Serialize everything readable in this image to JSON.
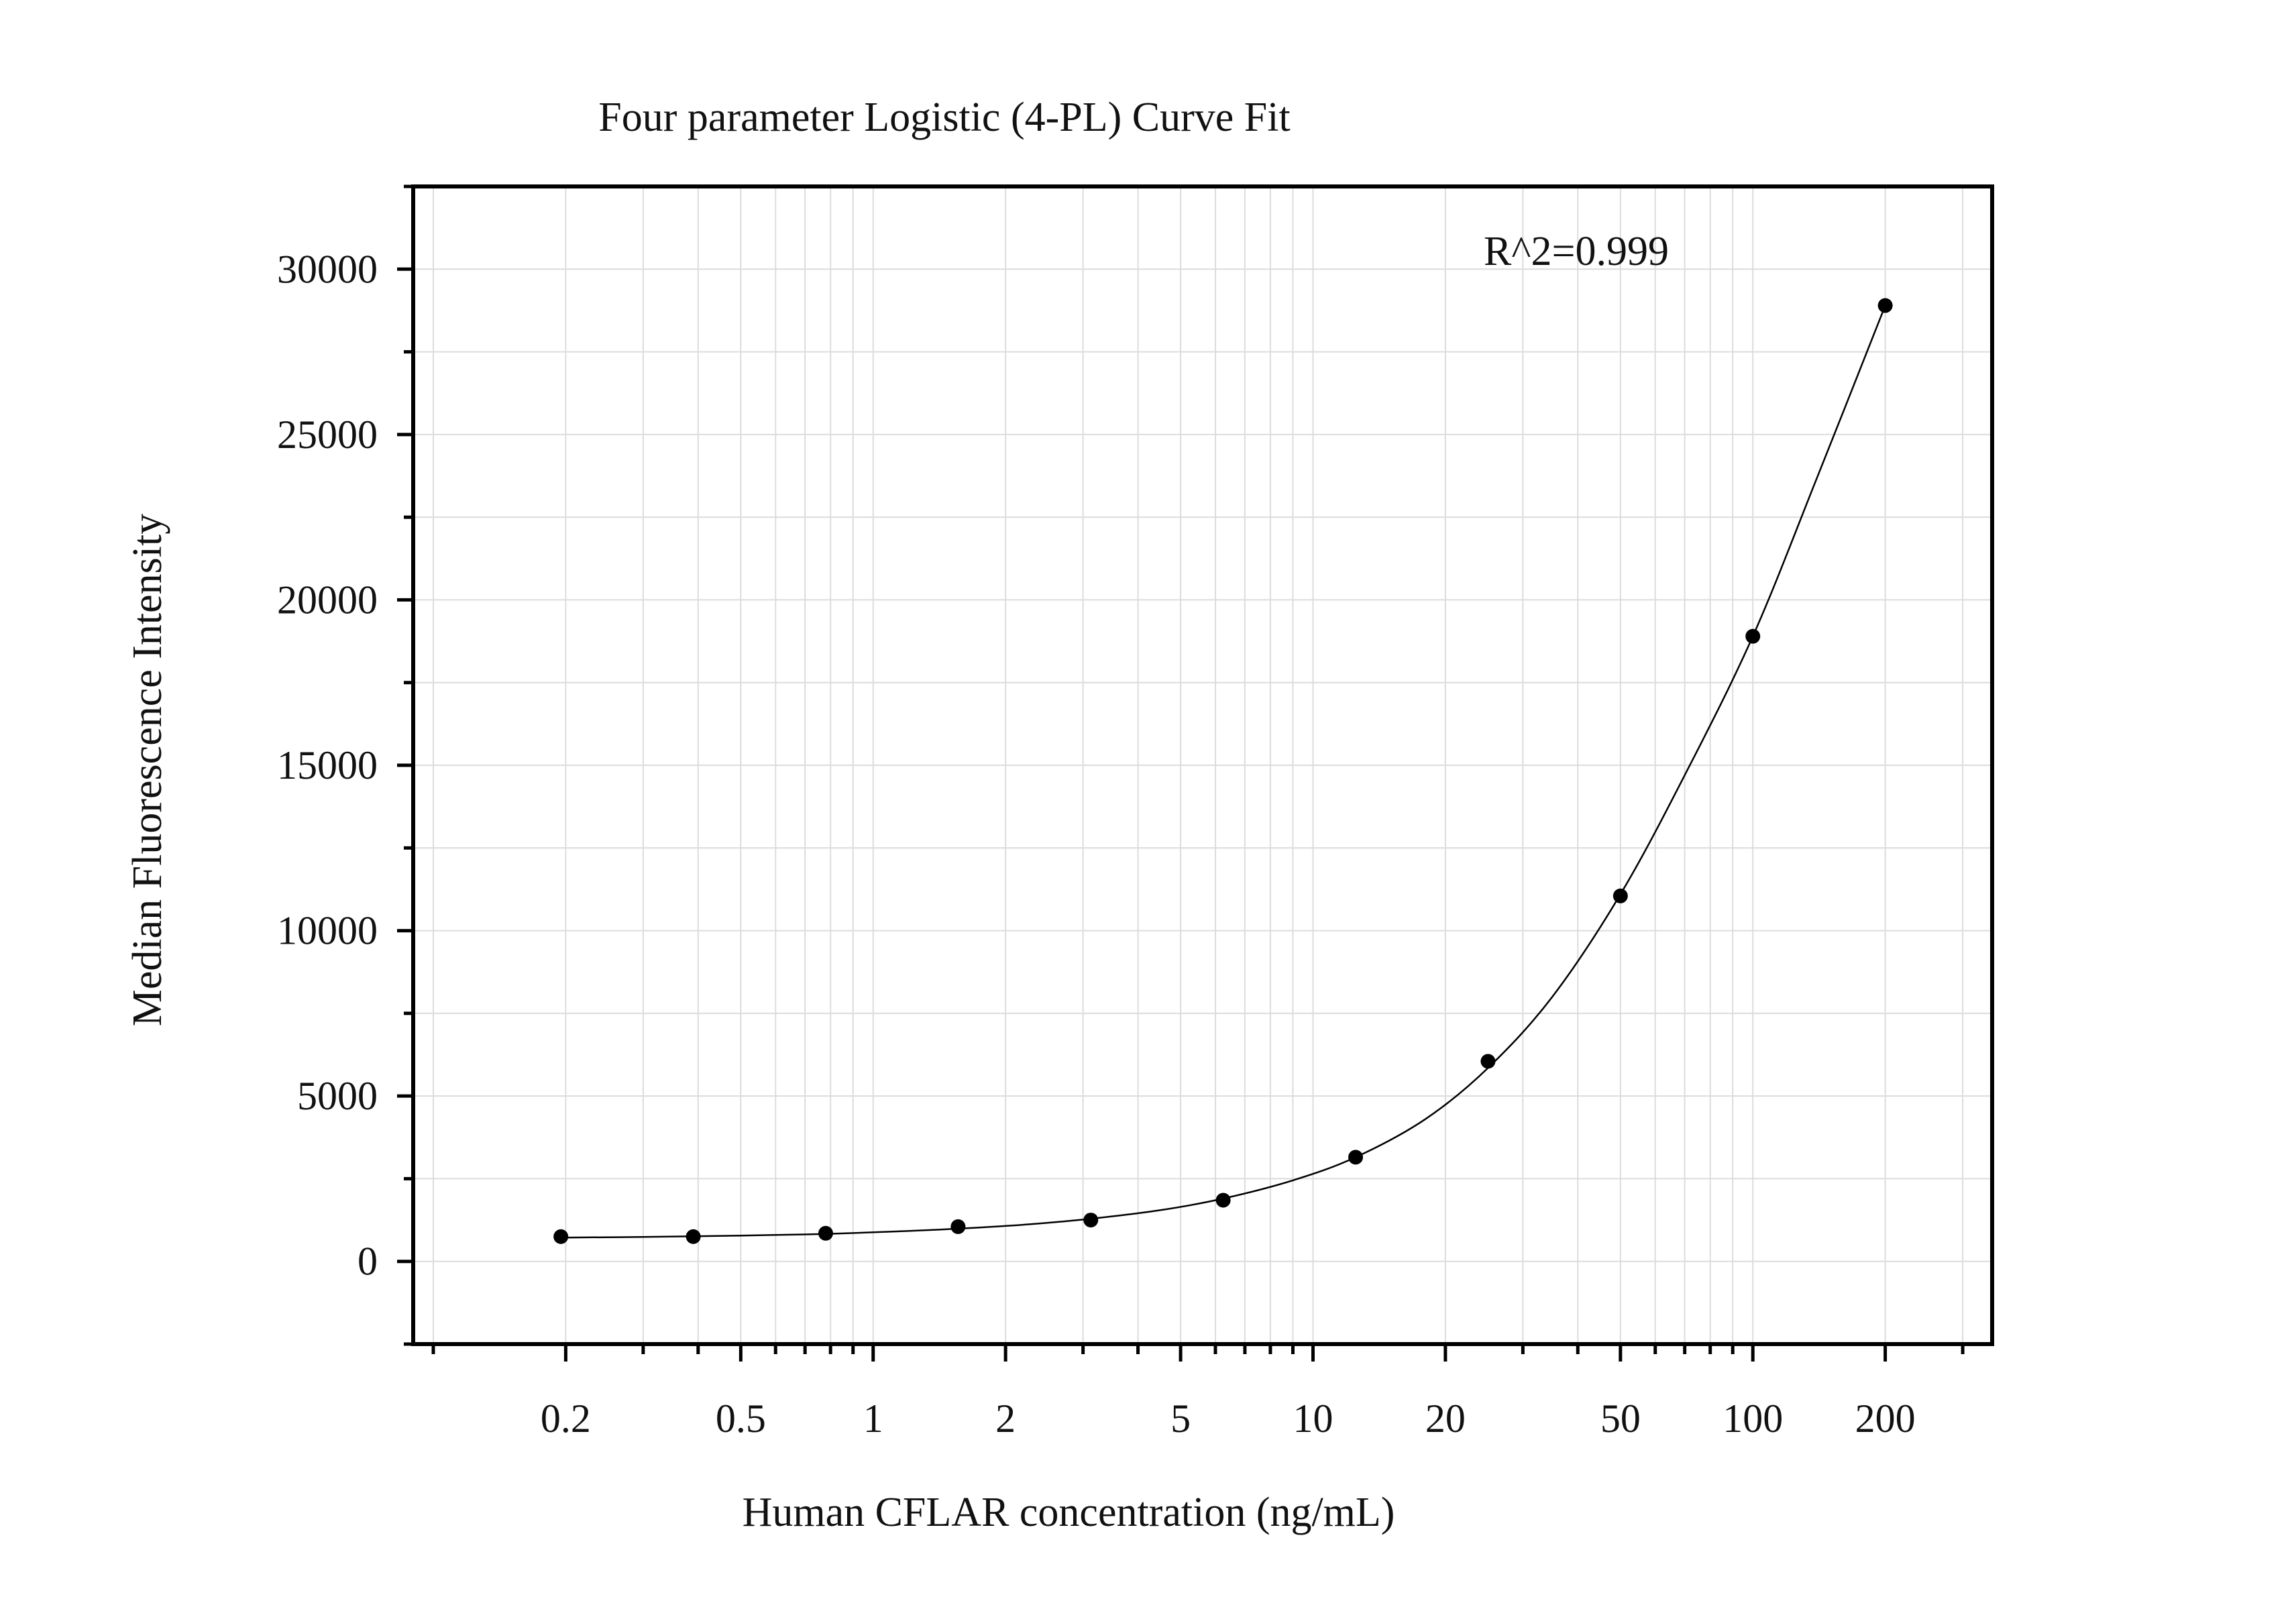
{
  "chart_data": {
    "type": "scatter",
    "title": "Four parameter Logistic (4-PL) Curve Fit",
    "xlabel": "Human CFLAR concentration (ng/mL)",
    "ylabel": "Median Fluorescence Intensity",
    "annotation": "R^2=0.999",
    "x_scale": "log",
    "xlim": [
      0.09,
      350
    ],
    "ylim": [
      -2500,
      32500
    ],
    "x_ticks": [
      {
        "value": 0.2,
        "label": "0.2"
      },
      {
        "value": 0.5,
        "label": "0.5"
      },
      {
        "value": 1,
        "label": "1"
      },
      {
        "value": 2,
        "label": "2"
      },
      {
        "value": 5,
        "label": "5"
      },
      {
        "value": 10,
        "label": "10"
      },
      {
        "value": 20,
        "label": "20"
      },
      {
        "value": 50,
        "label": "50"
      },
      {
        "value": 100,
        "label": "100"
      },
      {
        "value": 200,
        "label": "200"
      }
    ],
    "y_ticks": [
      {
        "value": 0,
        "label": "0"
      },
      {
        "value": 5000,
        "label": "5000"
      },
      {
        "value": 10000,
        "label": "10000"
      },
      {
        "value": 15000,
        "label": "15000"
      },
      {
        "value": 20000,
        "label": "20000"
      },
      {
        "value": 25000,
        "label": "25000"
      },
      {
        "value": 30000,
        "label": "30000"
      }
    ],
    "grid": true,
    "legend": "none",
    "series": [
      {
        "kind": "points",
        "color": "#000000",
        "x": [
          0.195,
          0.39,
          0.78,
          1.56,
          3.125,
          6.25,
          12.5,
          25,
          50,
          100,
          200
        ],
        "y": [
          750,
          750,
          850,
          1050,
          1250,
          1850,
          3150,
          6050,
          11050,
          18900,
          28900
        ]
      },
      {
        "kind": "fit-curve",
        "color": "#000000",
        "x": [
          0.195,
          0.3,
          0.5,
          0.78,
          1.2,
          1.56,
          2.2,
          3.125,
          4.5,
          6.25,
          9,
          12.5,
          18,
          25,
          35,
          50,
          70,
          100,
          140,
          200
        ],
        "y": [
          720,
          740,
          780,
          830,
          920,
          990,
          1110,
          1290,
          1550,
          1900,
          2450,
          3150,
          4300,
          5850,
          8000,
          11100,
          14700,
          18900,
          23700,
          28900
        ]
      }
    ]
  }
}
